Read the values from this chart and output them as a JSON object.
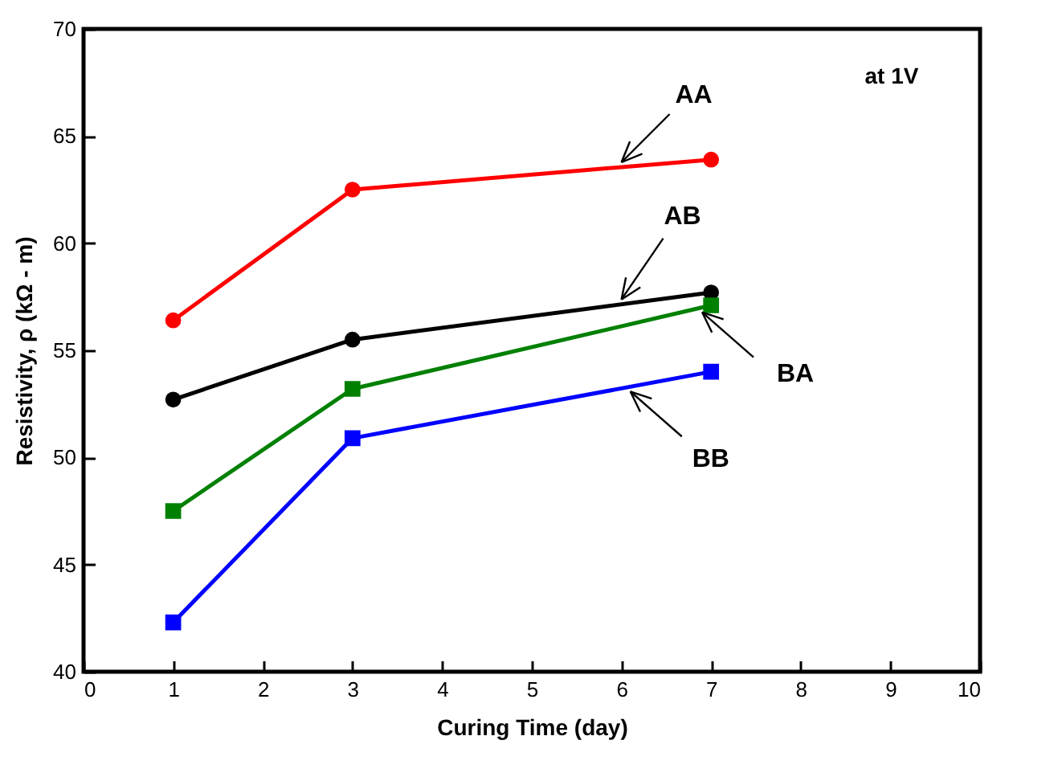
{
  "chart_data": {
    "type": "line",
    "xlabel": "Curing Time  (day)",
    "ylabel": "Resistivity, ρ  (kΩ - m)",
    "xlim": [
      0,
      10
    ],
    "xticks": [
      0,
      1,
      2,
      3,
      4,
      5,
      6,
      7,
      8,
      9,
      10
    ],
    "ylim": [
      40,
      70
    ],
    "yticks": [
      40,
      45,
      50,
      55,
      60,
      65,
      70
    ],
    "x": [
      1,
      3,
      7
    ],
    "series": [
      {
        "name": "AA",
        "color": "#ff0000",
        "marker": "circle",
        "values": [
          56.4,
          62.5,
          63.9
        ]
      },
      {
        "name": "AB",
        "color": "#000000",
        "marker": "circle",
        "values": [
          52.7,
          55.5,
          57.7
        ]
      },
      {
        "name": "BA",
        "color": "#008000",
        "marker": "square",
        "values": [
          47.5,
          53.2,
          57.1
        ]
      },
      {
        "name": "BB",
        "color": "#0000ff",
        "marker": "square",
        "values": [
          42.3,
          50.9,
          54.0
        ]
      }
    ],
    "annotations": [
      "at 1V"
    ]
  }
}
